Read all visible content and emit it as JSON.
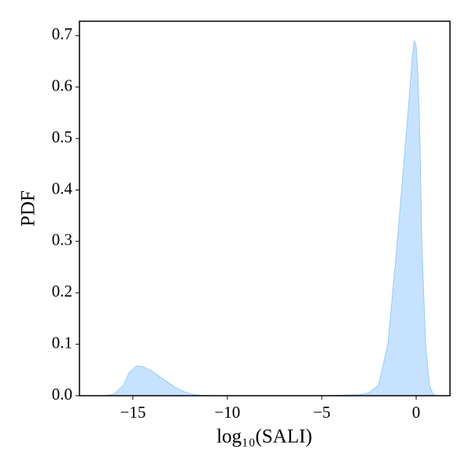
{
  "chart_data": {
    "type": "area",
    "xlabel": "log₁₀(SALI)",
    "ylabel": "PDF",
    "x": [
      -16.5,
      -16,
      -15.5,
      -15.2,
      -14.8,
      -14.5,
      -14,
      -13.5,
      -13,
      -12.5,
      -12,
      -11.5,
      -11,
      -10,
      -5,
      -3,
      -2.5,
      -2,
      -1.5,
      -1,
      -0.5,
      -0.2,
      -0.1,
      0,
      0.1,
      0.2,
      0.3,
      0.5,
      0.7,
      0.9,
      1.0
    ],
    "values": [
      0,
      0.003,
      0.02,
      0.045,
      0.058,
      0.057,
      0.048,
      0.035,
      0.022,
      0.011,
      0.004,
      0.001,
      0.0003,
      0,
      0,
      0.002,
      0.006,
      0.02,
      0.1,
      0.3,
      0.52,
      0.66,
      0.69,
      0.68,
      0.62,
      0.5,
      0.3,
      0.1,
      0.02,
      0.003,
      0
    ],
    "color": "#c6e2ff",
    "edge_color": "#8cc4f2",
    "xlim": [
      -17.83,
      1.79
    ],
    "xticks": [
      {
        "value": -15,
        "label": "−15"
      },
      {
        "value": -10,
        "label": "−10"
      },
      {
        "value": -5,
        "label": "−5"
      },
      0
    ],
    "ylim": [
      0,
      0.728
    ],
    "yticks": [
      {
        "value": 0,
        "label": "0.0"
      },
      0.1,
      0.2,
      0.3,
      0.4,
      0.5,
      0.6,
      0.7
    ]
  }
}
